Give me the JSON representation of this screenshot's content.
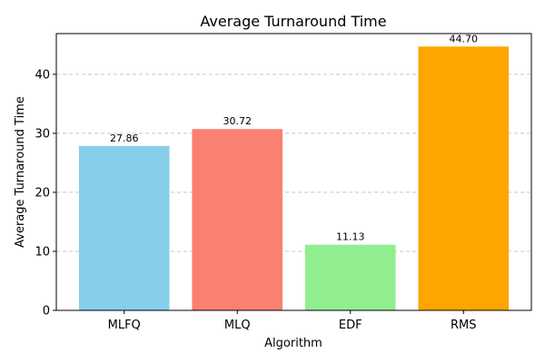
{
  "chart_data": {
    "type": "bar",
    "title": "Average Turnaround Time",
    "xlabel": "Algorithm",
    "ylabel": "Average Turnaround Time",
    "categories": [
      "MLFQ",
      "MLQ",
      "EDF",
      "RMS"
    ],
    "values": [
      27.86,
      30.72,
      11.13,
      44.7
    ],
    "value_labels": [
      "27.86",
      "30.72",
      "11.13",
      "44.70"
    ],
    "colors": [
      "#87ceeb",
      "#fa8072",
      "#90ee90",
      "#ffa500"
    ],
    "ylim": [
      0,
      46.9
    ],
    "yticks": [
      0,
      10,
      20,
      30,
      40
    ],
    "ytick_labels": [
      "0",
      "10",
      "20",
      "30",
      "40"
    ],
    "grid": {
      "axis": "y",
      "style": "dashed",
      "color": "#c8c8c8"
    }
  }
}
